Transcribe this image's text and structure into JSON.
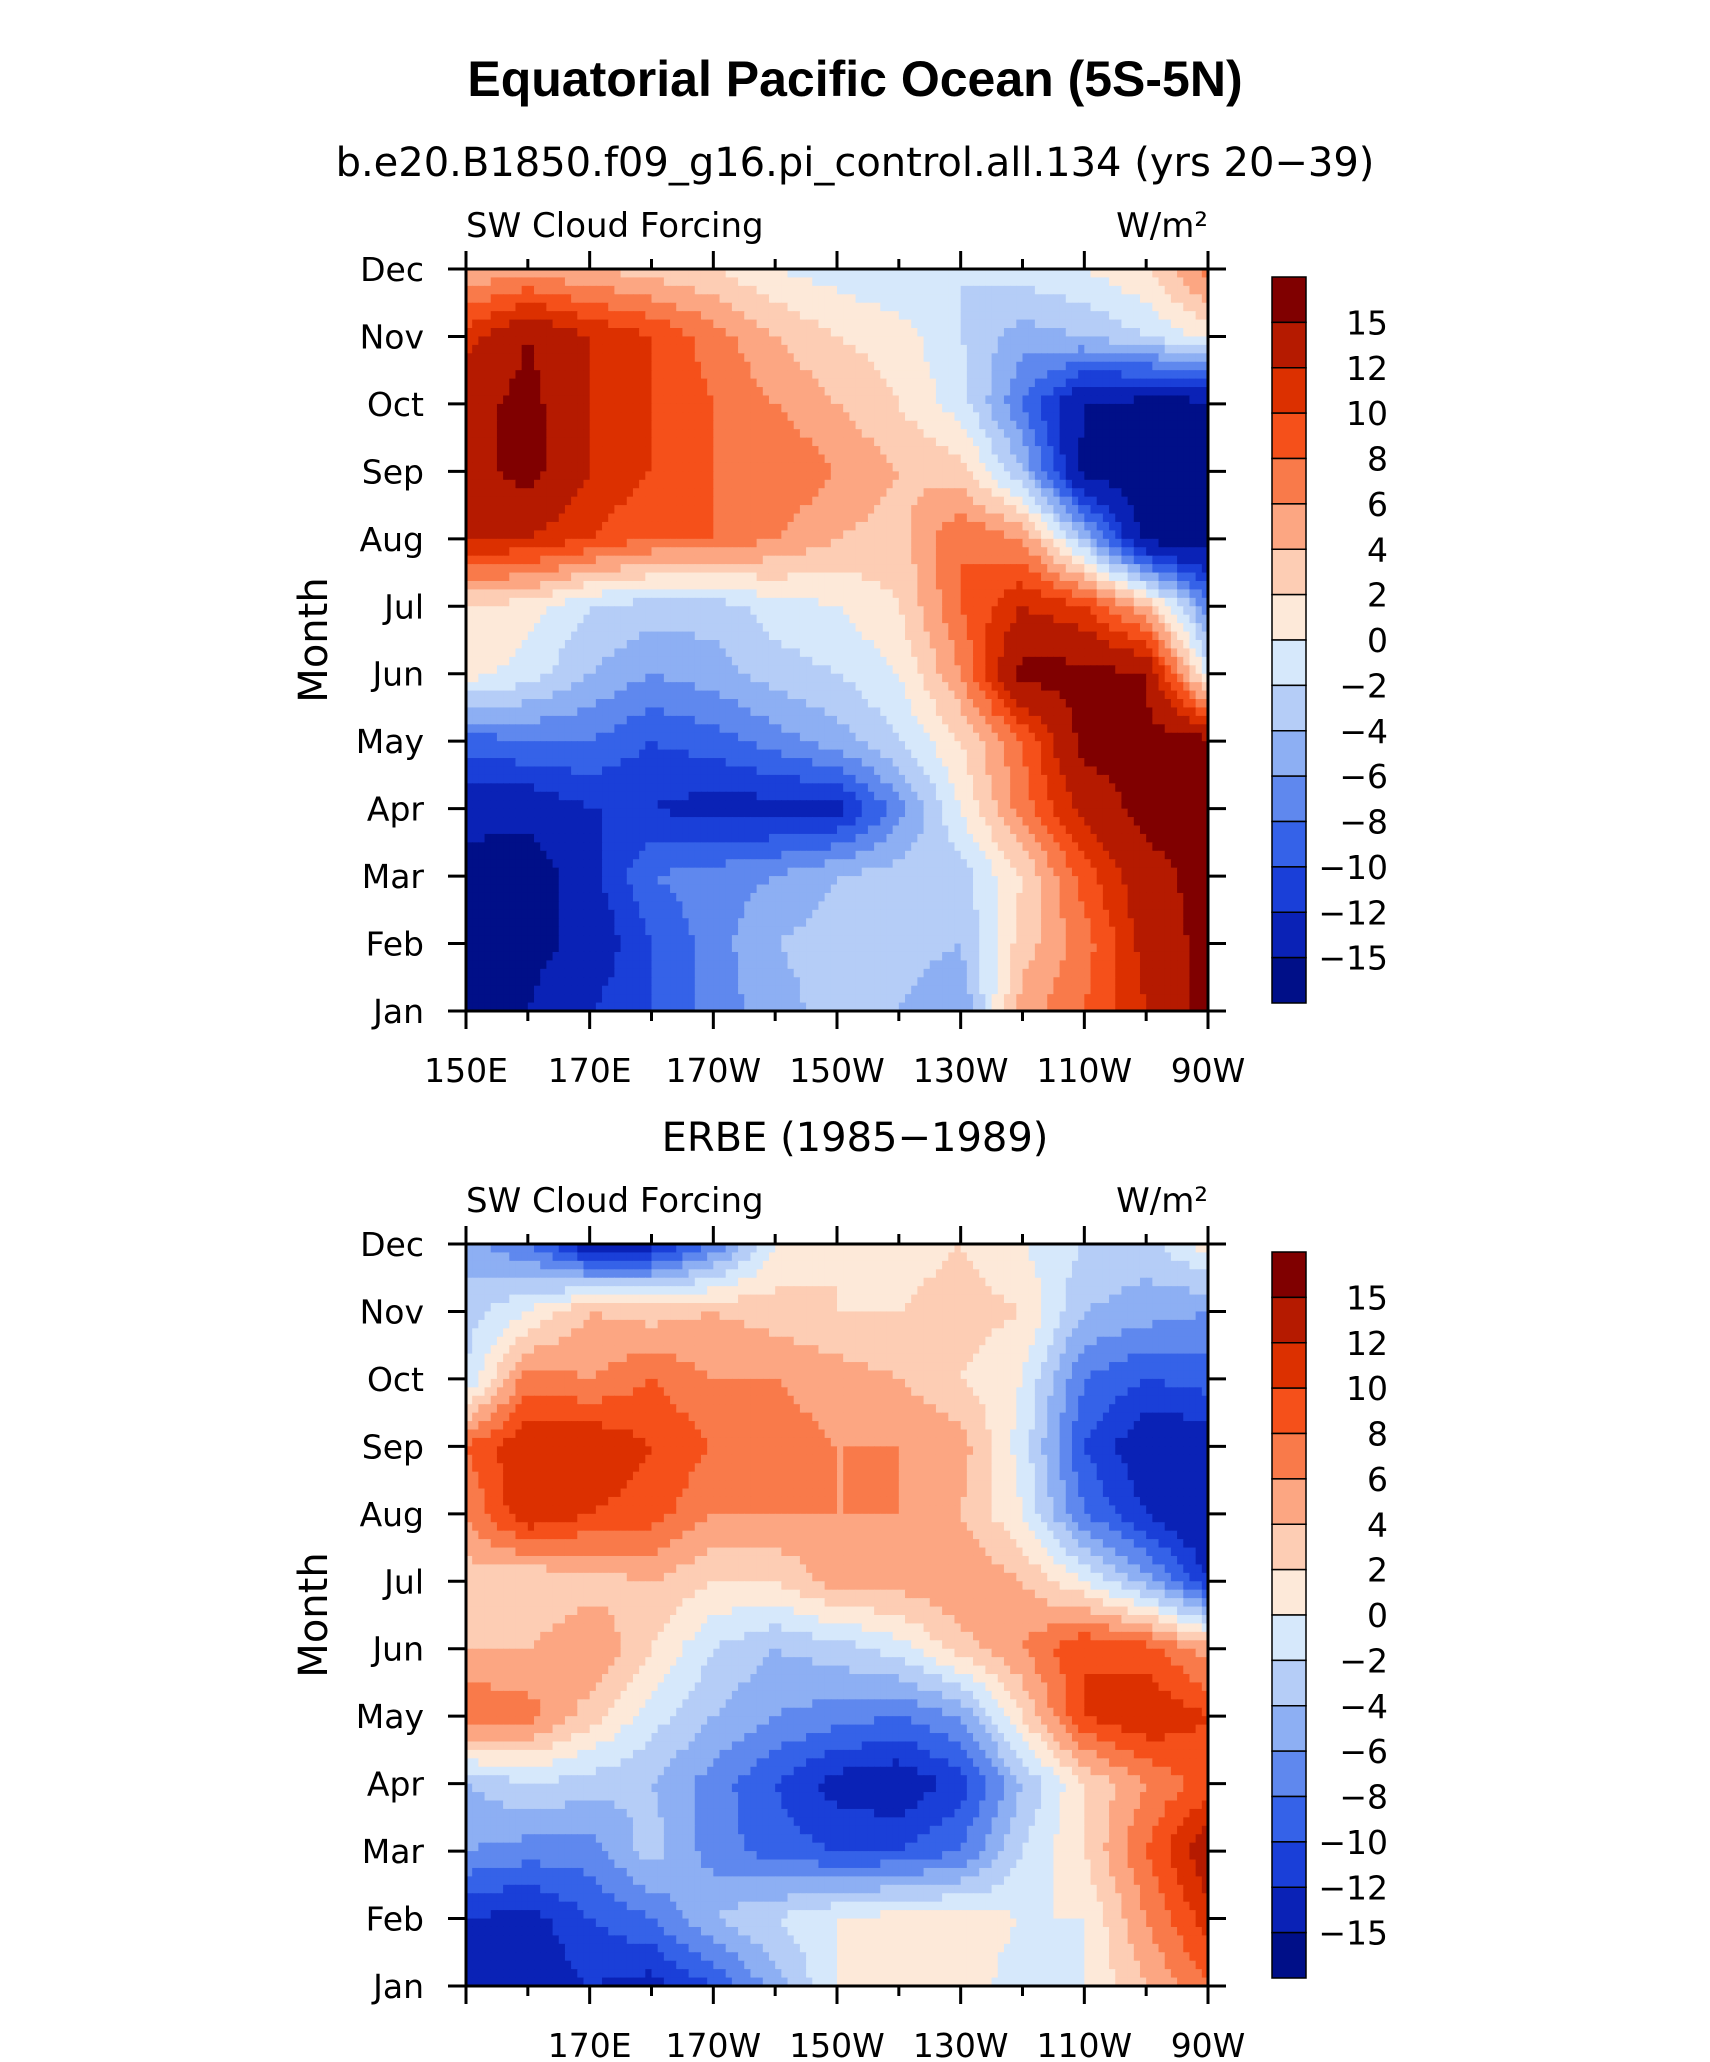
{
  "title": "Equatorial Pacific Ocean (5S-5N)",
  "levels": [
    "15",
    "12",
    "10",
    "8",
    "6",
    "4",
    "2",
    "0",
    "−2",
    "−4",
    "−6",
    "−8",
    "−10",
    "−12",
    "−15"
  ],
  "palette": [
    "#800000",
    "#b51a00",
    "#dc3000",
    "#f5501a",
    "#f97a4a",
    "#fca682",
    "#fdcdb4",
    "#fde9d9",
    "#d6e8fb",
    "#b5cdf7",
    "#8daff3",
    "#5f88ee",
    "#3562e8",
    "#1a3fd8",
    "#0a22b6",
    "#000f88"
  ],
  "chart_data": [
    {
      "type": "heatmap",
      "title": "b.e20.B1850.f09_g16.pi_control.all.134 (yrs 20−39)",
      "left_label": "SW Cloud Forcing",
      "right_label": "W/m²",
      "ylabel": "Month",
      "y_ticks": [
        "Jan",
        "Feb",
        "Mar",
        "Apr",
        "May",
        "Jun",
        "Jul",
        "Aug",
        "Sep",
        "Oct",
        "Nov",
        "Dec"
      ],
      "x_ticks": [
        "150E",
        "170E",
        "170W",
        "150W",
        "130W",
        "110W",
        "90W"
      ],
      "x_range": [
        150,
        270
      ],
      "x_months": [
        150,
        160,
        170,
        180,
        190,
        200,
        210,
        220,
        230,
        240,
        250,
        260,
        270
      ],
      "values": [
        [
          -16,
          -15,
          -12,
          -10,
          -7,
          -5,
          -3,
          -4,
          -6,
          5,
          8,
          12,
          16
        ],
        [
          -16,
          -16,
          -14,
          -10,
          -7,
          -4,
          -3,
          -3,
          -4,
          3,
          7,
          13,
          16
        ],
        [
          -16,
          -17,
          -13,
          -8,
          -7,
          -6,
          -4,
          -3,
          -3,
          2,
          9,
          14,
          16
        ],
        [
          -14,
          -14,
          -12,
          -12,
          -13,
          -13,
          -13,
          -7,
          0,
          7,
          13,
          16,
          16
        ],
        [
          -9,
          -8,
          -8,
          -10,
          -9,
          -7,
          -5,
          -2,
          2,
          8,
          16,
          16,
          16
        ],
        [
          1,
          -1,
          -4,
          -6,
          -5,
          -3,
          -2,
          0,
          6,
          16,
          16,
          15,
          -1
        ],
        [
          2,
          1,
          -2,
          -3,
          -3,
          -1,
          0,
          2,
          8,
          12,
          10,
          4,
          -7
        ],
        [
          12,
          12,
          10,
          8,
          8,
          6,
          4,
          3,
          8,
          6,
          -4,
          -16,
          -17
        ],
        [
          14,
          16,
          12,
          10,
          8,
          8,
          6,
          4,
          3,
          -4,
          -16,
          -17,
          -17
        ],
        [
          14,
          16,
          12,
          10,
          8,
          6,
          4,
          2,
          -1,
          -8,
          -15,
          -16,
          -16
        ],
        [
          11,
          15,
          12,
          10,
          7,
          4,
          2,
          1,
          -2,
          -5,
          -4,
          -2,
          1
        ],
        [
          4,
          5,
          4,
          3,
          2,
          0,
          -1,
          -2,
          -2,
          -1,
          0,
          2,
          7
        ]
      ]
    },
    {
      "type": "heatmap",
      "title": "ERBE (1985−1989)",
      "left_label": "SW Cloud Forcing",
      "right_label": "W/m²",
      "ylabel": "Month",
      "y_ticks": [
        "Jan",
        "Feb",
        "Mar",
        "Apr",
        "May",
        "Jun",
        "Jul",
        "Aug",
        "Sep",
        "Oct",
        "Nov",
        "Dec"
      ],
      "x_ticks": [
        "170E",
        "170W",
        "150W",
        "130W",
        "110W",
        "90W"
      ],
      "x_range": [
        150,
        270
      ],
      "x_months": [
        150,
        160,
        170,
        180,
        190,
        200,
        210,
        220,
        230,
        240,
        250,
        260,
        270
      ],
      "values": [
        [
          -12,
          -14,
          -12,
          -13,
          -10,
          -5,
          0,
          2,
          1,
          -1,
          0,
          4,
          8
        ],
        [
          -12,
          -13,
          -10,
          -8,
          -4,
          -2,
          0,
          1,
          1,
          0,
          0,
          6,
          11
        ],
        [
          -6,
          -7,
          -7,
          -3,
          -7,
          -9,
          -10,
          -10,
          -8,
          -2,
          2,
          8,
          14
        ],
        [
          -4,
          -2,
          -3,
          -4,
          -7,
          -10,
          -13,
          -14,
          -11,
          -4,
          2,
          6,
          9
        ],
        [
          8,
          7,
          3,
          -1,
          -4,
          -6,
          -7,
          -8,
          -6,
          2,
          10,
          12,
          10
        ],
        [
          4,
          4,
          6,
          2,
          -2,
          -4,
          -3,
          -1,
          3,
          6,
          10,
          9,
          5
        ],
        [
          3,
          2,
          3,
          4,
          2,
          2,
          5,
          5,
          6,
          4,
          0,
          -5,
          -12
        ],
        [
          6,
          12,
          10,
          9,
          6,
          6,
          6,
          6,
          4,
          0,
          -8,
          -12,
          -15
        ],
        [
          8,
          12,
          12,
          10,
          8,
          7,
          6,
          6,
          5,
          -1,
          -10,
          -14,
          -14
        ],
        [
          -2,
          7,
          6,
          8,
          6,
          6,
          5,
          4,
          2,
          0,
          -8,
          -10,
          -9
        ],
        [
          -3,
          0,
          4,
          3,
          4,
          3,
          2,
          2,
          3,
          2,
          -4,
          -5,
          -6
        ],
        [
          -5,
          -8,
          -14,
          -13,
          -8,
          0,
          2,
          1,
          2,
          0,
          -2,
          -3,
          1
        ]
      ]
    }
  ]
}
